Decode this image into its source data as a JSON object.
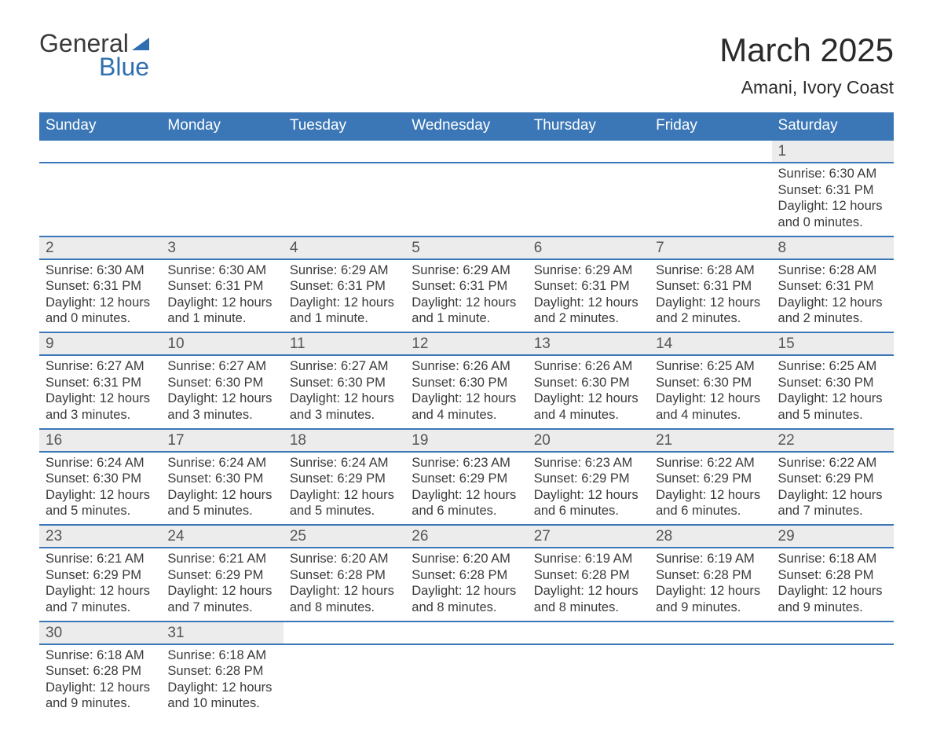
{
  "logo": {
    "word1": "General",
    "word2": "Blue"
  },
  "title": "March 2025",
  "location": "Amani, Ivory Coast",
  "colors": {
    "header_bg": "#3b77b6",
    "header_text": "#ffffff",
    "daynum_bg": "#ececec",
    "row_border": "#3b77b6",
    "body_text": "#3a3a3a",
    "logo_accent": "#2f6fb0",
    "page_bg": "#ffffff"
  },
  "typography": {
    "title_fontsize": 42,
    "location_fontsize": 23,
    "dow_fontsize": 19,
    "daynum_fontsize": 19,
    "data_fontsize": 16.5,
    "font_family": "Arial"
  },
  "days_of_week": [
    "Sunday",
    "Monday",
    "Tuesday",
    "Wednesday",
    "Thursday",
    "Friday",
    "Saturday"
  ],
  "weeks": [
    [
      null,
      null,
      null,
      null,
      null,
      null,
      {
        "n": "1",
        "sr": "Sunrise: 6:30 AM",
        "ss": "Sunset: 6:31 PM",
        "d1": "Daylight: 12 hours",
        "d2": "and 0 minutes."
      }
    ],
    [
      {
        "n": "2",
        "sr": "Sunrise: 6:30 AM",
        "ss": "Sunset: 6:31 PM",
        "d1": "Daylight: 12 hours",
        "d2": "and 0 minutes."
      },
      {
        "n": "3",
        "sr": "Sunrise: 6:30 AM",
        "ss": "Sunset: 6:31 PM",
        "d1": "Daylight: 12 hours",
        "d2": "and 1 minute."
      },
      {
        "n": "4",
        "sr": "Sunrise: 6:29 AM",
        "ss": "Sunset: 6:31 PM",
        "d1": "Daylight: 12 hours",
        "d2": "and 1 minute."
      },
      {
        "n": "5",
        "sr": "Sunrise: 6:29 AM",
        "ss": "Sunset: 6:31 PM",
        "d1": "Daylight: 12 hours",
        "d2": "and 1 minute."
      },
      {
        "n": "6",
        "sr": "Sunrise: 6:29 AM",
        "ss": "Sunset: 6:31 PM",
        "d1": "Daylight: 12 hours",
        "d2": "and 2 minutes."
      },
      {
        "n": "7",
        "sr": "Sunrise: 6:28 AM",
        "ss": "Sunset: 6:31 PM",
        "d1": "Daylight: 12 hours",
        "d2": "and 2 minutes."
      },
      {
        "n": "8",
        "sr": "Sunrise: 6:28 AM",
        "ss": "Sunset: 6:31 PM",
        "d1": "Daylight: 12 hours",
        "d2": "and 2 minutes."
      }
    ],
    [
      {
        "n": "9",
        "sr": "Sunrise: 6:27 AM",
        "ss": "Sunset: 6:31 PM",
        "d1": "Daylight: 12 hours",
        "d2": "and 3 minutes."
      },
      {
        "n": "10",
        "sr": "Sunrise: 6:27 AM",
        "ss": "Sunset: 6:30 PM",
        "d1": "Daylight: 12 hours",
        "d2": "and 3 minutes."
      },
      {
        "n": "11",
        "sr": "Sunrise: 6:27 AM",
        "ss": "Sunset: 6:30 PM",
        "d1": "Daylight: 12 hours",
        "d2": "and 3 minutes."
      },
      {
        "n": "12",
        "sr": "Sunrise: 6:26 AM",
        "ss": "Sunset: 6:30 PM",
        "d1": "Daylight: 12 hours",
        "d2": "and 4 minutes."
      },
      {
        "n": "13",
        "sr": "Sunrise: 6:26 AM",
        "ss": "Sunset: 6:30 PM",
        "d1": "Daylight: 12 hours",
        "d2": "and 4 minutes."
      },
      {
        "n": "14",
        "sr": "Sunrise: 6:25 AM",
        "ss": "Sunset: 6:30 PM",
        "d1": "Daylight: 12 hours",
        "d2": "and 4 minutes."
      },
      {
        "n": "15",
        "sr": "Sunrise: 6:25 AM",
        "ss": "Sunset: 6:30 PM",
        "d1": "Daylight: 12 hours",
        "d2": "and 5 minutes."
      }
    ],
    [
      {
        "n": "16",
        "sr": "Sunrise: 6:24 AM",
        "ss": "Sunset: 6:30 PM",
        "d1": "Daylight: 12 hours",
        "d2": "and 5 minutes."
      },
      {
        "n": "17",
        "sr": "Sunrise: 6:24 AM",
        "ss": "Sunset: 6:30 PM",
        "d1": "Daylight: 12 hours",
        "d2": "and 5 minutes."
      },
      {
        "n": "18",
        "sr": "Sunrise: 6:24 AM",
        "ss": "Sunset: 6:29 PM",
        "d1": "Daylight: 12 hours",
        "d2": "and 5 minutes."
      },
      {
        "n": "19",
        "sr": "Sunrise: 6:23 AM",
        "ss": "Sunset: 6:29 PM",
        "d1": "Daylight: 12 hours",
        "d2": "and 6 minutes."
      },
      {
        "n": "20",
        "sr": "Sunrise: 6:23 AM",
        "ss": "Sunset: 6:29 PM",
        "d1": "Daylight: 12 hours",
        "d2": "and 6 minutes."
      },
      {
        "n": "21",
        "sr": "Sunrise: 6:22 AM",
        "ss": "Sunset: 6:29 PM",
        "d1": "Daylight: 12 hours",
        "d2": "and 6 minutes."
      },
      {
        "n": "22",
        "sr": "Sunrise: 6:22 AM",
        "ss": "Sunset: 6:29 PM",
        "d1": "Daylight: 12 hours",
        "d2": "and 7 minutes."
      }
    ],
    [
      {
        "n": "23",
        "sr": "Sunrise: 6:21 AM",
        "ss": "Sunset: 6:29 PM",
        "d1": "Daylight: 12 hours",
        "d2": "and 7 minutes."
      },
      {
        "n": "24",
        "sr": "Sunrise: 6:21 AM",
        "ss": "Sunset: 6:29 PM",
        "d1": "Daylight: 12 hours",
        "d2": "and 7 minutes."
      },
      {
        "n": "25",
        "sr": "Sunrise: 6:20 AM",
        "ss": "Sunset: 6:28 PM",
        "d1": "Daylight: 12 hours",
        "d2": "and 8 minutes."
      },
      {
        "n": "26",
        "sr": "Sunrise: 6:20 AM",
        "ss": "Sunset: 6:28 PM",
        "d1": "Daylight: 12 hours",
        "d2": "and 8 minutes."
      },
      {
        "n": "27",
        "sr": "Sunrise: 6:19 AM",
        "ss": "Sunset: 6:28 PM",
        "d1": "Daylight: 12 hours",
        "d2": "and 8 minutes."
      },
      {
        "n": "28",
        "sr": "Sunrise: 6:19 AM",
        "ss": "Sunset: 6:28 PM",
        "d1": "Daylight: 12 hours",
        "d2": "and 9 minutes."
      },
      {
        "n": "29",
        "sr": "Sunrise: 6:18 AM",
        "ss": "Sunset: 6:28 PM",
        "d1": "Daylight: 12 hours",
        "d2": "and 9 minutes."
      }
    ],
    [
      {
        "n": "30",
        "sr": "Sunrise: 6:18 AM",
        "ss": "Sunset: 6:28 PM",
        "d1": "Daylight: 12 hours",
        "d2": "and 9 minutes."
      },
      {
        "n": "31",
        "sr": "Sunrise: 6:18 AM",
        "ss": "Sunset: 6:28 PM",
        "d1": "Daylight: 12 hours",
        "d2": "and 10 minutes."
      },
      null,
      null,
      null,
      null,
      null
    ]
  ]
}
